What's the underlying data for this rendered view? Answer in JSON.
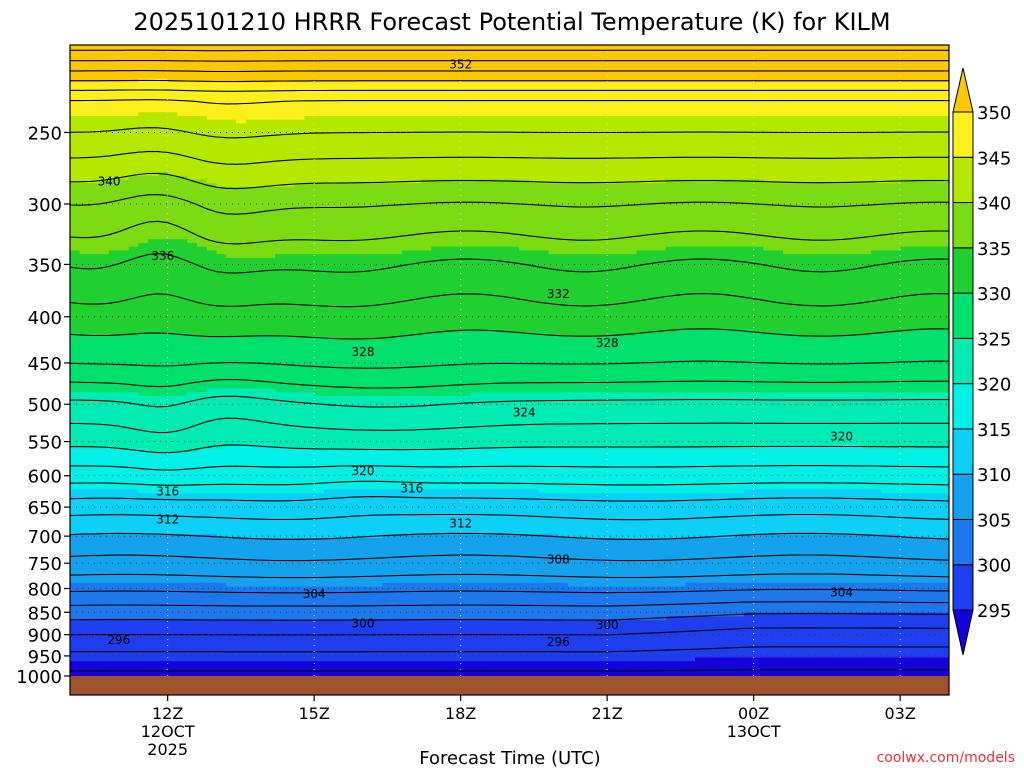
{
  "chart_data": {
    "type": "heatmap",
    "subtype": "filled-contour time-height cross section",
    "title": "2025101210 HRRR Forecast Potential Temperature (K) for KILM",
    "xlabel": "Forecast Time (UTC)",
    "ylabel": "",
    "y_axis_kind": "pressure (hPa), log scale, reversed",
    "ylim": [
      1000,
      200
    ],
    "xlim_hours": [
      10,
      28
    ],
    "x_ticks": [
      {
        "hour": 12,
        "lines": [
          "12Z",
          "12OCT",
          "2025"
        ]
      },
      {
        "hour": 15,
        "lines": [
          "15Z"
        ]
      },
      {
        "hour": 18,
        "lines": [
          "18Z"
        ]
      },
      {
        "hour": 21,
        "lines": [
          "21Z"
        ]
      },
      {
        "hour": 24,
        "lines": [
          "00Z",
          "13OCT"
        ]
      },
      {
        "hour": 27,
        "lines": [
          "03Z"
        ]
      }
    ],
    "y_ticks": [
      250,
      300,
      350,
      400,
      450,
      500,
      550,
      600,
      650,
      700,
      750,
      800,
      850,
      900,
      950,
      1000
    ],
    "grid": "dotted",
    "colorbar": {
      "ticks": [
        295,
        300,
        305,
        310,
        315,
        320,
        325,
        330,
        335,
        340,
        345,
        350
      ],
      "colors": [
        "#1400d8",
        "#1e3ff0",
        "#1c78ec",
        "#14a2ee",
        "#0cd0f8",
        "#00f2e6",
        "#00ecb4",
        "#00e06c",
        "#20d030",
        "#7cdc14",
        "#b4e800",
        "#fcf01c",
        "#fcc800"
      ],
      "extend": "both"
    },
    "contour_interval_K": 2,
    "contour_labels": [
      {
        "hour": 18.0,
        "p": 210,
        "value": "352"
      },
      {
        "hour": 10.8,
        "p": 283,
        "value": "340"
      },
      {
        "hour": 11.9,
        "p": 342,
        "value": "336"
      },
      {
        "hour": 20.0,
        "p": 377,
        "value": "332"
      },
      {
        "hour": 16.0,
        "p": 437,
        "value": "328"
      },
      {
        "hour": 21.0,
        "p": 427,
        "value": "328"
      },
      {
        "hour": 19.3,
        "p": 510,
        "value": "324"
      },
      {
        "hour": 16.0,
        "p": 592,
        "value": "320"
      },
      {
        "hour": 25.8,
        "p": 542,
        "value": "320"
      },
      {
        "hour": 12.0,
        "p": 624,
        "value": "316"
      },
      {
        "hour": 17.0,
        "p": 619,
        "value": "316"
      },
      {
        "hour": 12.0,
        "p": 670,
        "value": "312"
      },
      {
        "hour": 18.0,
        "p": 677,
        "value": "312"
      },
      {
        "hour": 20.0,
        "p": 742,
        "value": "308"
      },
      {
        "hour": 15.0,
        "p": 810,
        "value": "304"
      },
      {
        "hour": 25.8,
        "p": 807,
        "value": "304"
      },
      {
        "hour": 16.0,
        "p": 873,
        "value": "300"
      },
      {
        "hour": 21.0,
        "p": 877,
        "value": "300"
      },
      {
        "hour": 11.0,
        "p": 911,
        "value": "296"
      },
      {
        "hour": 20.0,
        "p": 916,
        "value": "296"
      }
    ],
    "surface_fill_color": "#a0522d"
  },
  "credit": "coolwx.com/models"
}
